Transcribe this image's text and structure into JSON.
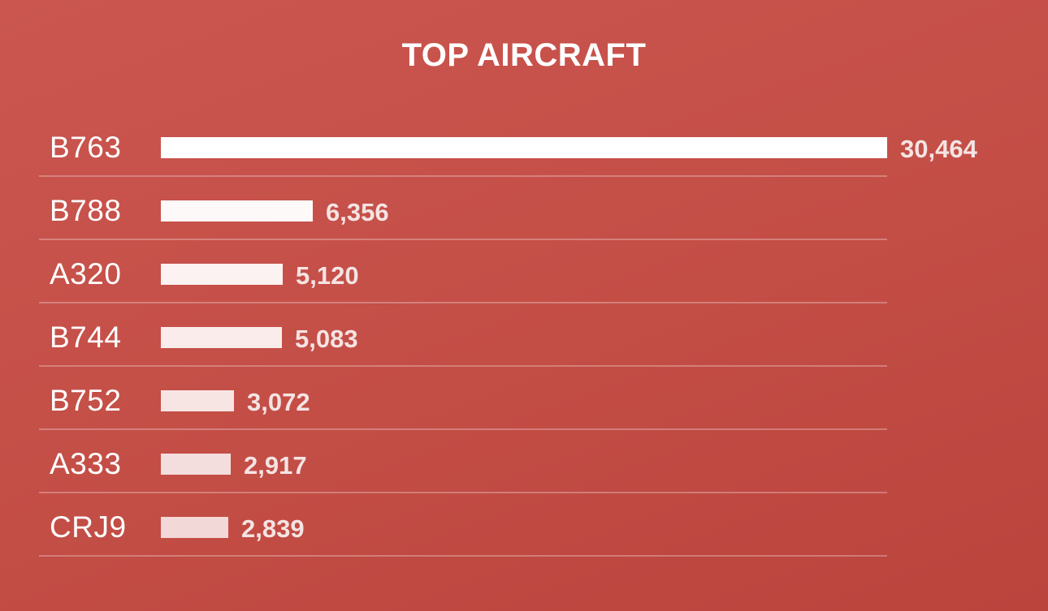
{
  "chart_data": {
    "type": "bar",
    "orientation": "horizontal",
    "title": "TOP AIRCRAFT",
    "categories": [
      "B763",
      "B788",
      "A320",
      "B744",
      "B752",
      "A333",
      "CRJ9"
    ],
    "values": [
      30464,
      6356,
      5120,
      5083,
      3072,
      2917,
      2839
    ],
    "value_labels": [
      "30,464",
      "6,356",
      "5,120",
      "5,083",
      "3,072",
      "2,917",
      "2,839"
    ],
    "xlim": [
      0,
      30464
    ],
    "grid": false,
    "legend": "none"
  },
  "colors": {
    "background": "#c44f47",
    "bar": "#ffffff",
    "label": "#ffffff",
    "value": "#f4e4e3"
  }
}
